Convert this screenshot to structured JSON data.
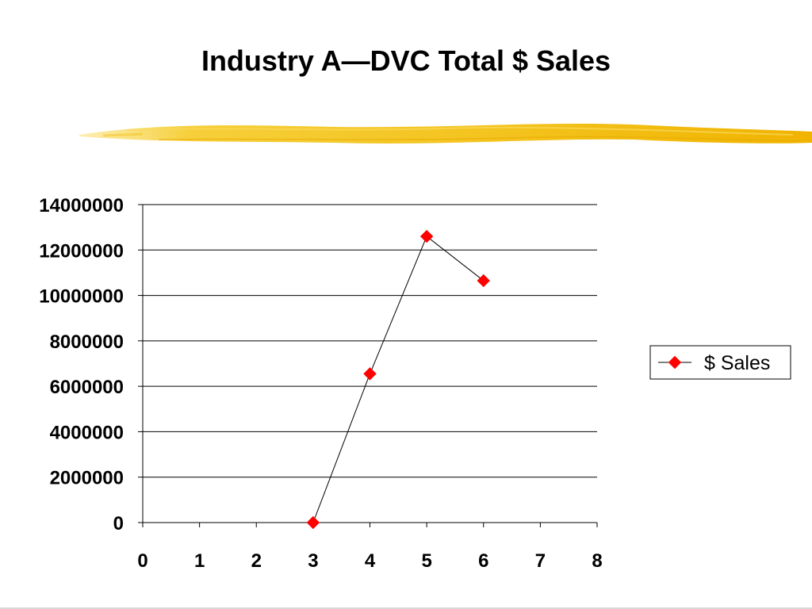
{
  "slide": {
    "title": "Industry A—DVC Total $ Sales"
  },
  "colors": {
    "accent_brush": "#f5c518",
    "series_marker": "#ff0000",
    "series_line": "#000000",
    "gridline": "#000000"
  },
  "chart_data": {
    "type": "scatter",
    "title": "",
    "xlabel": "",
    "ylabel": "",
    "xlim": [
      0,
      8
    ],
    "ylim": [
      0,
      14000000
    ],
    "x_ticks": [
      "0",
      "1",
      "2",
      "3",
      "4",
      "5",
      "6",
      "7",
      "8"
    ],
    "y_ticks": [
      "0",
      "2000000",
      "4000000",
      "6000000",
      "8000000",
      "10000000",
      "12000000",
      "14000000"
    ],
    "grid": true,
    "legend_position": "right",
    "series": [
      {
        "name": "$ Sales",
        "marker": "diamond",
        "connected": true,
        "x": [
          3,
          4,
          5,
          6
        ],
        "y": [
          0,
          6550000,
          12600000,
          10650000
        ]
      }
    ]
  }
}
